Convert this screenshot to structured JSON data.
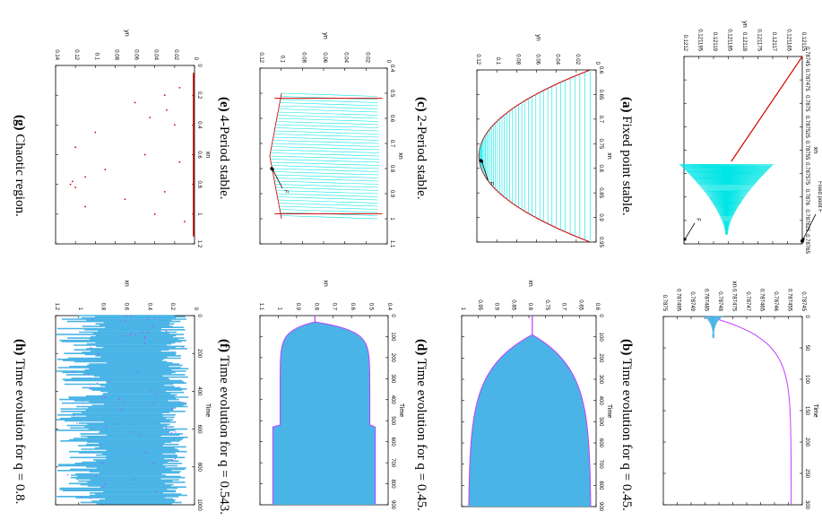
{
  "captions": [
    {
      "id": "a",
      "label": "(a)",
      "text": "Fixed point stable."
    },
    {
      "id": "b",
      "label": "(b)",
      "text": "Time evolution for q = 0.45."
    },
    {
      "id": "c",
      "label": "(c)",
      "text": "2-Period stable."
    },
    {
      "id": "d",
      "label": "(d)",
      "text": "Time evolution for q = 0.45."
    },
    {
      "id": "e",
      "label": "(e)",
      "text": "4-Period stable."
    },
    {
      "id": "f",
      "label": "(f)",
      "text": "Time evolution for q = 0.543."
    },
    {
      "id": "g",
      "label": "(g)",
      "text": "Chaotic region."
    },
    {
      "id": "h",
      "label": "(h)",
      "text": "Time evolution for q = 0.8."
    }
  ],
  "colors": {
    "cyan": "#00e5e5",
    "red": "#d40000",
    "blue": "#4ab4e6",
    "magenta": "#c040ff"
  },
  "chart_data": [
    {
      "id": "a",
      "type": "line",
      "xlabel": "xn",
      "ylabel": "yn",
      "xlim": [
        0.78745,
        0.78765
      ],
      "ylim": [
        0.12115,
        0.1212
      ],
      "xticks": [
        "0.78745",
        "0.787475",
        "0.7875",
        "0.787525",
        "0.78755",
        "0.787575",
        "0.7876",
        "0.787625",
        "0.78765"
      ],
      "yticks": [
        "0.12115",
        "0.121165",
        "0.12117",
        "0.121175",
        "0.12118",
        "0.121185",
        "0.12119",
        "0.121195",
        "0.1212"
      ],
      "annotations": [
        "Fixed point F",
        "F"
      ]
    },
    {
      "id": "b",
      "type": "line",
      "xlabel": "Time",
      "ylabel": "xn",
      "xlim": [
        0,
        300
      ],
      "ylim": [
        0.78745,
        0.7875
      ],
      "xticks": [
        "0",
        "50",
        "100",
        "150",
        "200",
        "250",
        "300"
      ],
      "yticks": [
        "0.78745",
        "0.787455",
        "0.78746",
        "0.787465",
        "0.78747",
        "0.787475",
        "0.78748",
        "0.787485",
        "0.78749",
        "0.787495",
        "0.7875"
      ]
    },
    {
      "id": "c",
      "type": "line",
      "xlabel": "xn",
      "ylabel": "yn",
      "xlim": [
        0.6,
        0.98
      ],
      "ylim": [
        0,
        0.12
      ],
      "xticks": [
        "0.6",
        "0.65",
        "0.7",
        "0.75",
        "0.8",
        "0.85",
        "0.9",
        "0.95"
      ],
      "yticks": [
        "0",
        "0.02",
        "0.04",
        "0.06",
        "0.08",
        "0.1",
        "0.12"
      ],
      "annotations": [
        "F"
      ]
    },
    {
      "id": "d",
      "type": "line",
      "xlabel": "Time",
      "ylabel": "xn",
      "xlim": [
        0,
        900
      ],
      "ylim": [
        0.6,
        1.0
      ],
      "xticks": [
        "0",
        "100",
        "200",
        "300",
        "400",
        "500",
        "600",
        "700",
        "800",
        "900"
      ],
      "yticks": [
        "0.6",
        "0.65",
        "0.7",
        "0.75",
        "0.8",
        "0.85",
        "0.9",
        "0.95",
        "1"
      ]
    },
    {
      "id": "e",
      "type": "line",
      "xlabel": "xn",
      "ylabel": "yn",
      "xlim": [
        0.4,
        1.1
      ],
      "ylim": [
        0,
        0.13
      ],
      "xticks": [
        "0.4",
        "0.5",
        "0.6",
        "0.7",
        "0.8",
        "0.9",
        "1",
        "1.1"
      ],
      "yticks": [
        "0",
        "0.02",
        "0.04",
        "0.06",
        "0.08",
        "0.1",
        "0.12"
      ],
      "annotations": [
        "F"
      ]
    },
    {
      "id": "f",
      "type": "line",
      "xlabel": "Time",
      "ylabel": "xn",
      "xlim": [
        0,
        900
      ],
      "ylim": [
        0.4,
        1.1
      ],
      "xticks": [
        "0",
        "100",
        "200",
        "300",
        "400",
        "500",
        "600",
        "700",
        "800",
        "900"
      ],
      "yticks": [
        "0.4",
        "0.5",
        "0.6",
        "0.7",
        "0.8",
        "0.9",
        "1",
        "1.1"
      ]
    },
    {
      "id": "g",
      "type": "scatter",
      "xlabel": "xn",
      "ylabel": "yn",
      "xlim": [
        0,
        1.2
      ],
      "ylim": [
        0,
        0.14
      ],
      "xticks": [
        "0",
        "0.2",
        "0.4",
        "0.6",
        "0.8",
        "1",
        "1.2"
      ],
      "yticks": [
        "0",
        "0.02",
        "0.04",
        "0.06",
        "0.08",
        "0.1",
        "0.12",
        "0.14"
      ]
    },
    {
      "id": "h",
      "type": "line",
      "xlabel": "Time",
      "ylabel": "xn",
      "xlim": [
        0,
        1000
      ],
      "ylim": [
        0,
        1.2
      ],
      "xticks": [
        "0",
        "200",
        "400",
        "600",
        "800",
        "1000"
      ],
      "yticks": [
        "0",
        "0.2",
        "0.4",
        "0.6",
        "0.8",
        "1",
        "1.2"
      ]
    }
  ]
}
